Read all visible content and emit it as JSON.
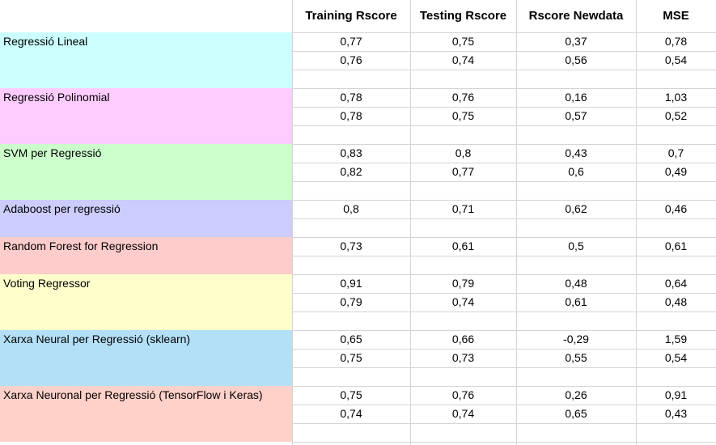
{
  "headers": [
    "Training Rscore",
    "Testing Rscore",
    "Rscore Newdata",
    "MSE"
  ],
  "models": [
    {
      "name": "Regressió Lineal",
      "color": "#ccffff",
      "rows": [
        [
          "0,77",
          "0,75",
          "0,37",
          "0,78"
        ],
        [
          "0,76",
          "0,74",
          "0,56",
          "0,54"
        ]
      ]
    },
    {
      "name": "Regressió Polinomial",
      "color": "#ffccff",
      "rows": [
        [
          "0,78",
          "0,76",
          "0,16",
          "1,03"
        ],
        [
          "0,78",
          "0,75",
          "0,57",
          "0,52"
        ]
      ]
    },
    {
      "name": "SVM  per Regressió",
      "color": "#ccffcc",
      "rows": [
        [
          "0,83",
          "0,8",
          "0,43",
          "0,7"
        ],
        [
          "0,82",
          "0,77",
          "0,6",
          "0,49"
        ]
      ]
    },
    {
      "name": "Adaboost per regressió",
      "color": "#ccccff",
      "rows": [
        [
          "0,8",
          "0,71",
          "0,62",
          "0,46"
        ]
      ]
    },
    {
      "name": "Random Forest for Regression",
      "color": "#ffcccc",
      "rows": [
        [
          "0,73",
          "0,61",
          "0,5",
          "0,61"
        ]
      ]
    },
    {
      "name": "Voting Regressor",
      "color": "#ffffcc",
      "rows": [
        [
          "0,91",
          "0,79",
          "0,48",
          "0,64"
        ],
        [
          "0,79",
          "0,74",
          "0,61",
          "0,48"
        ]
      ]
    },
    {
      "name": "Xarxa Neural per Regressió (sklearn)",
      "color": "#b3e0f7",
      "rows": [
        [
          "0,65",
          "0,66",
          "-0,29",
          "1,59"
        ],
        [
          "0,75",
          "0,73",
          "0,55",
          "0,54"
        ]
      ]
    },
    {
      "name": "Xarxa Neuronal per Regressió (TensorFlow i Keras)",
      "color": "#ffd1c9",
      "rows": [
        [
          "0,75",
          "0,76",
          "0,26",
          "0,91"
        ],
        [
          "0,74",
          "0,74",
          "0,65",
          "0,43"
        ]
      ]
    }
  ]
}
